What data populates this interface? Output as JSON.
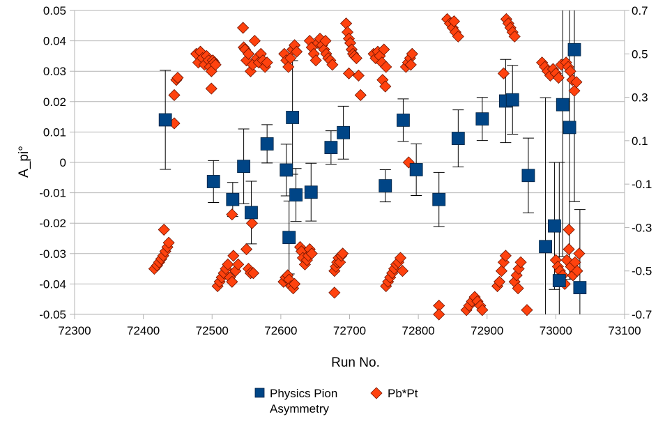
{
  "chart_data": {
    "type": "scatter",
    "title": "",
    "xlabel": "Run No.",
    "ylabel": "A_pi°",
    "xlim": [
      72300,
      73100
    ],
    "ylim": [
      -0.05,
      0.05
    ],
    "y2lim": [
      -0.7,
      0.7
    ],
    "x_ticks": [
      "72300",
      "72400",
      "72500",
      "72600",
      "72700",
      "72800",
      "72900",
      "73000",
      "73100"
    ],
    "y_ticks": [
      "-0.05",
      "-0.04",
      "-0.03",
      "-0.02",
      "-0.01",
      "0",
      "0.01",
      "0.02",
      "0.03",
      "0.04",
      "0.05"
    ],
    "y2_ticks": [
      "-0.7",
      "-0.5",
      "-0.3",
      "-0.1",
      "0.1",
      "0.3",
      "0.5",
      "0.7"
    ],
    "grid": "horizontal",
    "legend_position": "bottom",
    "series": [
      {
        "name": "Physics Pion Asymmetry",
        "axis": "left",
        "marker": "square",
        "color": "#004586",
        "points": [
          {
            "x": 72432,
            "y": 0.014,
            "err": 0.0163
          },
          {
            "x": 72502,
            "y": -0.0063,
            "err": 0.0069
          },
          {
            "x": 72530,
            "y": -0.0122,
            "err": 0.0056
          },
          {
            "x": 72546,
            "y": -0.0013,
            "err": 0.0123
          },
          {
            "x": 72557,
            "y": -0.0165,
            "err": 0.0103
          },
          {
            "x": 72580,
            "y": 0.0061,
            "err": 0.0063
          },
          {
            "x": 72608,
            "y": -0.0025,
            "err": 0.0085
          },
          {
            "x": 72612,
            "y": -0.0247,
            "err": 0.012
          },
          {
            "x": 72617,
            "y": 0.0148,
            "err": 0.0187
          },
          {
            "x": 72622,
            "y": -0.0107,
            "err": 0.0087
          },
          {
            "x": 72644,
            "y": -0.0098,
            "err": 0.0095
          },
          {
            "x": 72673,
            "y": 0.0049,
            "err": 0.0055
          },
          {
            "x": 72691,
            "y": 0.0098,
            "err": 0.0087
          },
          {
            "x": 72752,
            "y": -0.0077,
            "err": 0.0053
          },
          {
            "x": 72778,
            "y": 0.0139,
            "err": 0.007
          },
          {
            "x": 72797,
            "y": -0.0024,
            "err": 0.0085
          },
          {
            "x": 72830,
            "y": -0.0122,
            "err": 0.0089
          },
          {
            "x": 72858,
            "y": 0.0079,
            "err": 0.0094
          },
          {
            "x": 72893,
            "y": 0.0143,
            "err": 0.0071
          },
          {
            "x": 72927,
            "y": 0.0202,
            "err": 0.0137
          },
          {
            "x": 72937,
            "y": 0.0206,
            "err": 0.0113
          },
          {
            "x": 72960,
            "y": -0.0043,
            "err": 0.0123
          },
          {
            "x": 72985,
            "y": -0.0277,
            "err": 0.049
          },
          {
            "x": 72998,
            "y": -0.0209,
            "err": 0.0209
          },
          {
            "x": 73005,
            "y": -0.0389,
            "err": 0.0389
          },
          {
            "x": 73010,
            "y": 0.019,
            "err": 0.05
          },
          {
            "x": 73020,
            "y": 0.0115,
            "err": 0.05
          },
          {
            "x": 73027,
            "y": 0.0371,
            "err": 0.05
          },
          {
            "x": 73035,
            "y": -0.0412,
            "err": 0.0257
          }
        ]
      },
      {
        "name": "Pb*Pt",
        "axis": "right",
        "marker": "diamond",
        "color": "#ff420e",
        "points": [
          [
            72416,
            -0.49
          ],
          [
            72420,
            -0.475
          ],
          [
            72423,
            -0.46
          ],
          [
            72426,
            -0.445
          ],
          [
            72429,
            -0.43
          ],
          [
            72432,
            -0.41
          ],
          [
            72430,
            -0.31
          ],
          [
            72435,
            -0.39
          ],
          [
            72437,
            -0.37
          ],
          [
            72445,
            0.31
          ],
          [
            72448,
            0.38
          ],
          [
            72450,
            0.39
          ],
          [
            72445,
            0.18
          ],
          [
            72477,
            0.5
          ],
          [
            72480,
            0.46
          ],
          [
            72483,
            0.51
          ],
          [
            72486,
            0.48
          ],
          [
            72489,
            0.45
          ],
          [
            72492,
            0.49
          ],
          [
            72495,
            0.47
          ],
          [
            72497,
            0.44
          ],
          [
            72499,
            0.42
          ],
          [
            72501,
            0.47
          ],
          [
            72503,
            0.46
          ],
          [
            72505,
            0.45
          ],
          [
            72499,
            0.34
          ],
          [
            72508,
            -0.57
          ],
          [
            72511,
            -0.55
          ],
          [
            72514,
            -0.53
          ],
          [
            72517,
            -0.51
          ],
          [
            72520,
            -0.49
          ],
          [
            72523,
            -0.47
          ],
          [
            72526,
            -0.53
          ],
          [
            72529,
            -0.55
          ],
          [
            72531,
            -0.43
          ],
          [
            72534,
            -0.5
          ],
          [
            72538,
            -0.47
          ],
          [
            72529,
            -0.24
          ],
          [
            72545,
            0.62
          ],
          [
            72546,
            0.53
          ],
          [
            72548,
            0.52
          ],
          [
            72550,
            0.47
          ],
          [
            72553,
            0.5
          ],
          [
            72556,
            0.42
          ],
          [
            72559,
            0.45
          ],
          [
            72562,
            0.56
          ],
          [
            72565,
            0.48
          ],
          [
            72568,
            0.46
          ],
          [
            72571,
            0.5
          ],
          [
            72574,
            0.47
          ],
          [
            72577,
            0.44
          ],
          [
            72580,
            0.46
          ],
          [
            72550,
            -0.4
          ],
          [
            72553,
            -0.49
          ],
          [
            72556,
            -0.51
          ],
          [
            72558,
            -0.28
          ],
          [
            72560,
            -0.51
          ],
          [
            72604,
            -0.55
          ],
          [
            72607,
            -0.53
          ],
          [
            72610,
            -0.52
          ],
          [
            72612,
            -0.54
          ],
          [
            72615,
            -0.57
          ],
          [
            72618,
            -0.58
          ],
          [
            72620,
            -0.56
          ],
          [
            72605,
            0.5
          ],
          [
            72608,
            0.47
          ],
          [
            72611,
            0.44
          ],
          [
            72614,
            0.48
          ],
          [
            72617,
            0.52
          ],
          [
            72620,
            0.54
          ],
          [
            72623,
            0.51
          ],
          [
            72628,
            -0.39
          ],
          [
            72630,
            -0.41
          ],
          [
            72632,
            -0.44
          ],
          [
            72635,
            -0.47
          ],
          [
            72638,
            -0.45
          ],
          [
            72640,
            -0.43
          ],
          [
            72642,
            -0.4
          ],
          [
            72645,
            -0.42
          ],
          [
            72642,
            0.56
          ],
          [
            72645,
            0.53
          ],
          [
            72648,
            0.5
          ],
          [
            72651,
            0.47
          ],
          [
            72654,
            0.55
          ],
          [
            72657,
            0.57
          ],
          [
            72660,
            0.54
          ],
          [
            72663,
            0.52
          ],
          [
            72666,
            0.5
          ],
          [
            72669,
            0.48
          ],
          [
            72672,
            0.47
          ],
          [
            72675,
            0.45
          ],
          [
            72665,
            0.56
          ],
          [
            72678,
            -0.5
          ],
          [
            72680,
            -0.48
          ],
          [
            72682,
            -0.46
          ],
          [
            72684,
            -0.44
          ],
          [
            72686,
            -0.46
          ],
          [
            72688,
            -0.43
          ],
          [
            72690,
            -0.42
          ],
          [
            72678,
            -0.6
          ],
          [
            72695,
            0.64
          ],
          [
            72697,
            0.6
          ],
          [
            72699,
            0.57
          ],
          [
            72701,
            0.55
          ],
          [
            72703,
            0.52
          ],
          [
            72705,
            0.5
          ],
          [
            72707,
            0.49
          ],
          [
            72710,
            0.48
          ],
          [
            72713,
            0.4
          ],
          [
            72716,
            0.31
          ],
          [
            72699,
            0.41
          ],
          [
            72735,
            0.5
          ],
          [
            72738,
            0.48
          ],
          [
            72741,
            0.51
          ],
          [
            72744,
            0.49
          ],
          [
            72747,
            0.46
          ],
          [
            72750,
            0.52
          ],
          [
            72753,
            0.44
          ],
          [
            72748,
            0.38
          ],
          [
            72752,
            0.35
          ],
          [
            72753,
            -0.57
          ],
          [
            72756,
            -0.55
          ],
          [
            72759,
            -0.53
          ],
          [
            72762,
            -0.51
          ],
          [
            72765,
            -0.49
          ],
          [
            72768,
            -0.47
          ],
          [
            72771,
            -0.46
          ],
          [
            72774,
            -0.44
          ],
          [
            72777,
            -0.5
          ],
          [
            72782,
            0.44
          ],
          [
            72785,
            0.46
          ],
          [
            72788,
            0.48
          ],
          [
            72791,
            0.5
          ],
          [
            72789,
            0.45
          ],
          [
            72786,
            0.0
          ],
          [
            72830,
            -0.66
          ],
          [
            72830,
            -0.7
          ],
          [
            72842,
            0.66
          ],
          [
            72846,
            0.64
          ],
          [
            72850,
            0.62
          ],
          [
            72854,
            0.6
          ],
          [
            72858,
            0.58
          ],
          [
            72852,
            0.65
          ],
          [
            72870,
            -0.68
          ],
          [
            72874,
            -0.66
          ],
          [
            72878,
            -0.64
          ],
          [
            72882,
            -0.62
          ],
          [
            72886,
            -0.64
          ],
          [
            72890,
            -0.66
          ],
          [
            72893,
            -0.68
          ],
          [
            72915,
            -0.57
          ],
          [
            72918,
            -0.55
          ],
          [
            72921,
            -0.5
          ],
          [
            72924,
            -0.46
          ],
          [
            72927,
            -0.43
          ],
          [
            72924,
            0.41
          ],
          [
            72928,
            0.66
          ],
          [
            72931,
            0.64
          ],
          [
            72934,
            0.62
          ],
          [
            72937,
            0.6
          ],
          [
            72940,
            0.58
          ],
          [
            72940,
            -0.55
          ],
          [
            72943,
            -0.52
          ],
          [
            72946,
            -0.49
          ],
          [
            72949,
            -0.46
          ],
          [
            72945,
            -0.58
          ],
          [
            72958,
            -0.68
          ],
          [
            72980,
            0.46
          ],
          [
            72984,
            0.44
          ],
          [
            72988,
            0.42
          ],
          [
            72992,
            0.4
          ],
          [
            72996,
            0.43
          ],
          [
            73000,
            0.41
          ],
          [
            73004,
            0.39
          ],
          [
            73008,
            0.45
          ],
          [
            73000,
            -0.45
          ],
          [
            73003,
            -0.48
          ],
          [
            73006,
            -0.5
          ],
          [
            73010,
            -0.52
          ],
          [
            73013,
            -0.56
          ],
          [
            73016,
            -0.45
          ],
          [
            73019,
            -0.4
          ],
          [
            73022,
            -0.48
          ],
          [
            73025,
            -0.52
          ],
          [
            73028,
            -0.46
          ],
          [
            73031,
            -0.5
          ],
          [
            73034,
            -0.42
          ],
          [
            73019,
            -0.31
          ],
          [
            73015,
            0.46
          ],
          [
            73018,
            0.44
          ],
          [
            73021,
            0.42
          ],
          [
            73024,
            0.38
          ],
          [
            73027,
            0.33
          ],
          [
            73030,
            0.37
          ]
        ]
      }
    ]
  }
}
